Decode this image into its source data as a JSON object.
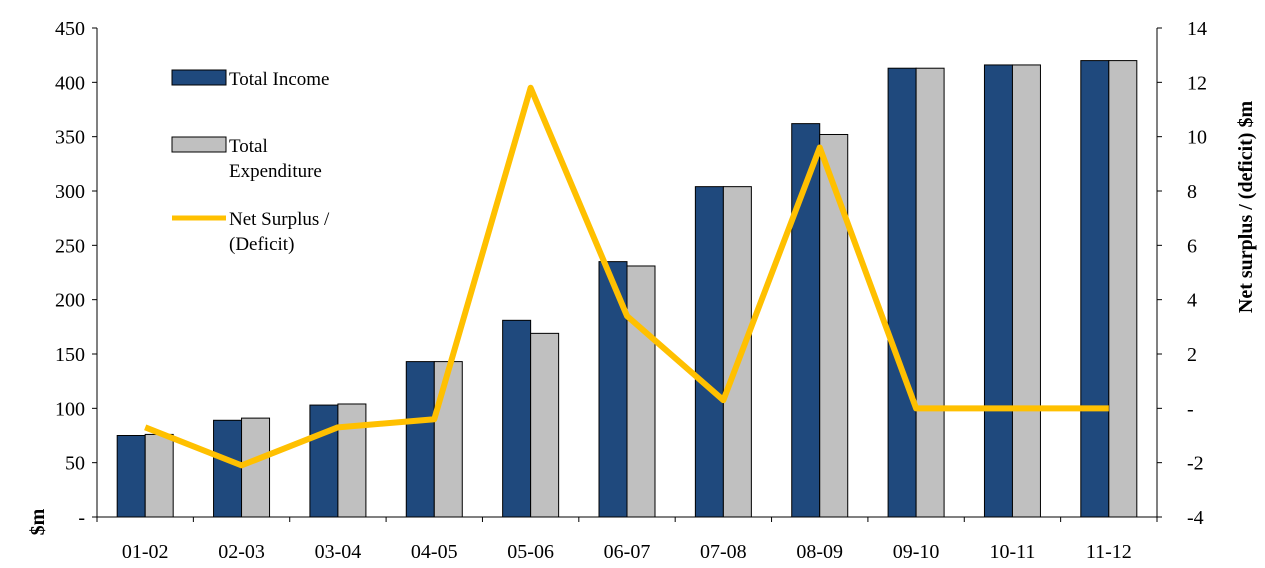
{
  "chart_data": {
    "type": "bar",
    "categories": [
      "01-02",
      "02-03",
      "03-04",
      "04-05",
      "05-06",
      "06-07",
      "07-08",
      "08-09",
      "09-10",
      "10-11",
      "11-12"
    ],
    "series": [
      {
        "name": "Total Income",
        "kind": "bar",
        "axis": "left",
        "color": "#1F497D",
        "values": [
          75,
          89,
          103,
          143,
          181,
          235,
          304,
          362,
          413,
          416,
          420
        ]
      },
      {
        "name": "Total Expenditure",
        "kind": "bar",
        "axis": "left",
        "color": "#C0C0C0",
        "values": [
          76,
          91,
          104,
          143,
          169,
          231,
          304,
          352,
          413,
          416,
          420
        ]
      },
      {
        "name": "Net Surplus / (Deficit)",
        "kind": "line",
        "axis": "right",
        "color": "#FFC000",
        "values": [
          -0.7,
          -2.1,
          -0.7,
          -0.4,
          11.8,
          3.4,
          0.3,
          9.6,
          0,
          0,
          0
        ]
      }
    ],
    "left_axis": {
      "label": "$m",
      "ylim": [
        0,
        450
      ],
      "ticks": [
        0,
        50,
        100,
        150,
        200,
        250,
        300,
        350,
        400,
        450
      ],
      "tick_labels": [
        "-",
        "50",
        "100",
        "150",
        "200",
        "250",
        "300",
        "350",
        "400",
        "450"
      ]
    },
    "right_axis": {
      "label": "Net surplus / (deficit) $m",
      "ylim": [
        -4,
        14
      ],
      "ticks": [
        -4,
        -2,
        0,
        2,
        4,
        6,
        8,
        10,
        12,
        14
      ],
      "tick_labels": [
        "-4",
        "-2",
        "-",
        "2",
        "4",
        "6",
        "8",
        "10",
        "12",
        "14"
      ]
    },
    "legend": {
      "placement": "top-left",
      "entries": [
        {
          "series": 0,
          "lines": [
            "Total Income"
          ]
        },
        {
          "series": 1,
          "lines": [
            "Total",
            "Expenditure"
          ]
        },
        {
          "series": 2,
          "lines": [
            "Net Surplus /",
            "(Deficit)"
          ]
        }
      ]
    },
    "grid": false
  }
}
